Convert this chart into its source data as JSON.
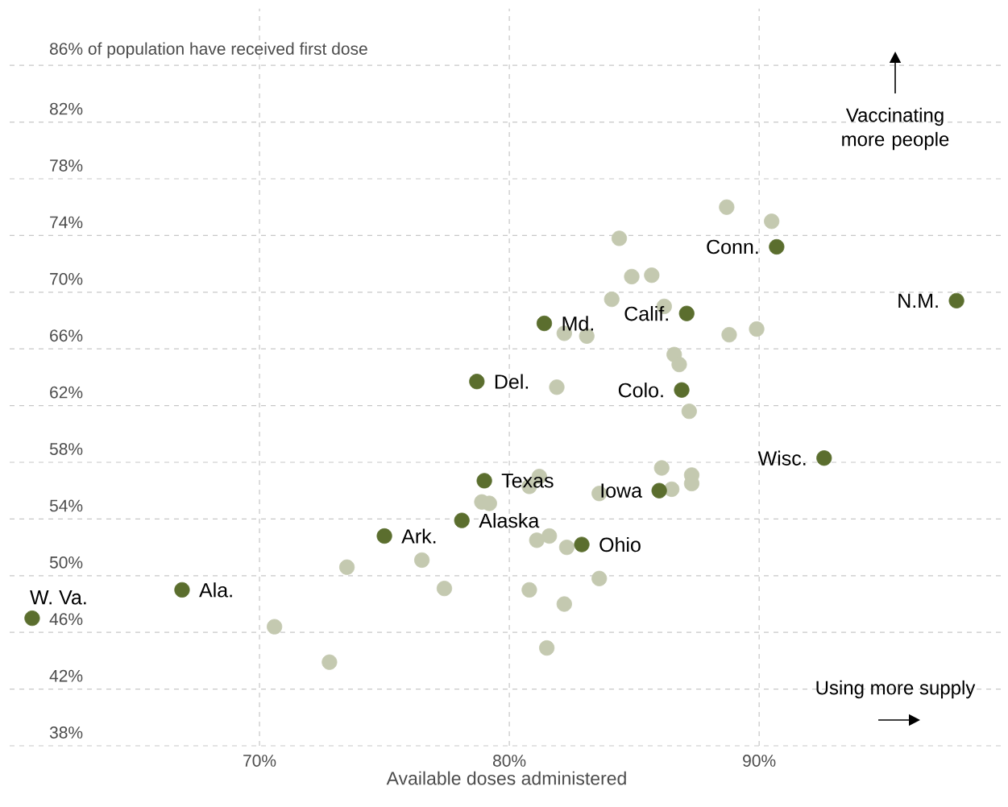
{
  "chart_data": {
    "type": "scatter",
    "xlabel": "Available doses administered",
    "xlim": [
      60,
      99.8
    ],
    "ylim": [
      38,
      90
    ],
    "xticks": [
      {
        "value": 70,
        "label": "70%"
      },
      {
        "value": 80,
        "label": "80%"
      },
      {
        "value": 90,
        "label": "90%"
      }
    ],
    "yticks": [
      {
        "value": 38,
        "label": "38%"
      },
      {
        "value": 42,
        "label": "42%"
      },
      {
        "value": 46,
        "label": "46%"
      },
      {
        "value": 50,
        "label": "50%"
      },
      {
        "value": 54,
        "label": "54%"
      },
      {
        "value": 58,
        "label": "58%"
      },
      {
        "value": 62,
        "label": "62%"
      },
      {
        "value": 66,
        "label": "66%"
      },
      {
        "value": 70,
        "label": "70%"
      },
      {
        "value": 74,
        "label": "74%"
      },
      {
        "value": 78,
        "label": "78%"
      },
      {
        "value": 82,
        "label": "82%"
      },
      {
        "value": 86,
        "label": "86% of population have received first dose"
      }
    ],
    "grid": true,
    "marker": "circle",
    "series": [
      {
        "color": "#c4c9b0",
        "x": [
          88.7,
          90.5,
          84.4,
          84.9,
          85.7,
          84.1,
          86.2,
          89.9,
          88.8,
          82.2,
          83.1,
          86.6,
          86.8,
          81.9,
          87.2,
          86.1,
          87.3,
          87.3,
          86.5,
          83.6,
          81.2,
          80.8,
          78.9,
          79.2,
          81.6,
          81.1,
          82.3,
          76.5,
          73.5,
          83.6,
          77.4,
          80.8,
          82.2,
          70.6,
          81.5,
          72.8
        ],
        "values": [
          76.0,
          75.0,
          73.8,
          71.1,
          71.2,
          69.5,
          69.0,
          67.4,
          67.0,
          67.1,
          66.9,
          65.6,
          64.9,
          63.3,
          61.6,
          57.6,
          57.1,
          56.5,
          56.1,
          55.8,
          57.0,
          56.3,
          55.2,
          55.1,
          52.8,
          52.5,
          52.0,
          51.1,
          50.6,
          49.8,
          49.1,
          49.0,
          48.0,
          46.4,
          44.9,
          43.9
        ]
      },
      {
        "color": "#5b6e2e",
        "x": [
          60.9,
          66.9,
          75.0,
          78.1,
          79.0,
          82.9,
          86.0,
          78.7,
          81.4,
          87.1,
          86.9,
          90.7,
          97.9,
          92.6
        ],
        "values": [
          47.0,
          49.0,
          52.8,
          53.9,
          56.7,
          52.2,
          56.0,
          63.7,
          67.8,
          68.5,
          63.1,
          73.2,
          69.4,
          58.3
        ]
      }
    ],
    "annotations": [
      {
        "text": "W. Va.",
        "x": 60.9,
        "y": 47.0
      },
      {
        "text": "Ala.",
        "x": 66.9,
        "y": 49.0
      },
      {
        "text": "Ark.",
        "x": 75.0,
        "y": 52.8
      },
      {
        "text": "Alaska",
        "x": 78.1,
        "y": 53.9
      },
      {
        "text": "Texas",
        "x": 79.0,
        "y": 56.7
      },
      {
        "text": "Ohio",
        "x": 82.9,
        "y": 52.2
      },
      {
        "text": "Iowa",
        "x": 86.0,
        "y": 56.0
      },
      {
        "text": "Del.",
        "x": 78.7,
        "y": 63.7
      },
      {
        "text": "Md.",
        "x": 81.4,
        "y": 67.8
      },
      {
        "text": "Calif.",
        "x": 87.1,
        "y": 68.5
      },
      {
        "text": "Colo.",
        "x": 86.9,
        "y": 63.1
      },
      {
        "text": "Conn.",
        "x": 90.7,
        "y": 73.2
      },
      {
        "text": "N.M.",
        "x": 97.9,
        "y": 69.4
      },
      {
        "text": "Wisc.",
        "x": 92.6,
        "y": 58.3
      },
      "Vaccinating more people",
      "Using more supply"
    ]
  }
}
